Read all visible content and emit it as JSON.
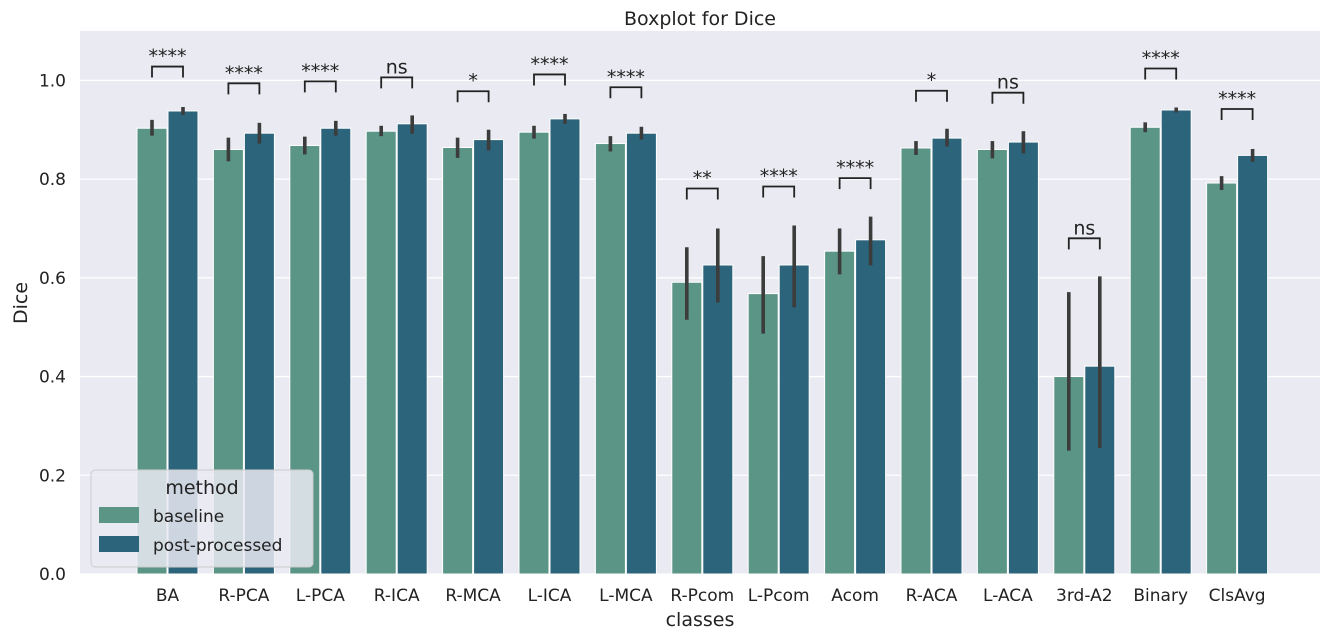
{
  "chart_data": {
    "type": "bar",
    "title": "Boxplot for Dice",
    "xlabel": "classes",
    "ylabel": "Dice",
    "ylim": [
      0,
      1.1
    ],
    "yticks": [
      "0.0",
      "0.2",
      "0.4",
      "0.6",
      "0.8",
      "1.0"
    ],
    "grid": true,
    "legend": {
      "title": "method",
      "placement": "lower-left"
    },
    "categories": [
      "BA",
      "R-PCA",
      "L-PCA",
      "R-ICA",
      "R-MCA",
      "L-ICA",
      "L-MCA",
      "R-Pcom",
      "L-Pcom",
      "Acom",
      "R-ACA",
      "L-ACA",
      "3rd-A2",
      "Binary",
      "ClsAvg"
    ],
    "series": [
      {
        "name": "baseline",
        "color": "#5a9586",
        "values": [
          0.903,
          0.86,
          0.868,
          0.897,
          0.864,
          0.895,
          0.872,
          0.591,
          0.568,
          0.654,
          0.863,
          0.86,
          0.4,
          0.905,
          0.792
        ],
        "ci_low": [
          0.888,
          0.836,
          0.85,
          0.887,
          0.843,
          0.882,
          0.856,
          0.515,
          0.487,
          0.607,
          0.849,
          0.842,
          0.25,
          0.895,
          0.778
        ],
        "ci_high": [
          0.92,
          0.884,
          0.886,
          0.908,
          0.884,
          0.908,
          0.887,
          0.662,
          0.644,
          0.7,
          0.877,
          0.877,
          0.571,
          0.915,
          0.806
        ]
      },
      {
        "name": "post-processed",
        "color": "#2b647b",
        "values": [
          0.938,
          0.893,
          0.903,
          0.912,
          0.88,
          0.922,
          0.893,
          0.626,
          0.626,
          0.677,
          0.883,
          0.875,
          0.421,
          0.94,
          0.848
        ],
        "ci_low": [
          0.93,
          0.872,
          0.888,
          0.892,
          0.858,
          0.912,
          0.88,
          0.55,
          0.54,
          0.625,
          0.866,
          0.852,
          0.255,
          0.935,
          0.835
        ],
        "ci_high": [
          0.946,
          0.914,
          0.918,
          0.929,
          0.9,
          0.932,
          0.906,
          0.7,
          0.706,
          0.724,
          0.902,
          0.897,
          0.603,
          0.945,
          0.861
        ]
      }
    ],
    "annotations": [
      {
        "category": "BA",
        "label": "****",
        "y": 1.028
      },
      {
        "category": "R-PCA",
        "label": "****",
        "y": 0.994
      },
      {
        "category": "L-PCA",
        "label": "****",
        "y": 0.998
      },
      {
        "category": "R-ICA",
        "label": "ns",
        "y": 1.006
      },
      {
        "category": "R-MCA",
        "label": "*",
        "y": 0.978
      },
      {
        "category": "L-ICA",
        "label": "****",
        "y": 1.012
      },
      {
        "category": "L-MCA",
        "label": "****",
        "y": 0.986
      },
      {
        "category": "R-Pcom",
        "label": "**",
        "y": 0.781
      },
      {
        "category": "L-Pcom",
        "label": "****",
        "y": 0.785
      },
      {
        "category": "Acom",
        "label": "****",
        "y": 0.802
      },
      {
        "category": "R-ACA",
        "label": "*",
        "y": 0.979
      },
      {
        "category": "L-ACA",
        "label": "ns",
        "y": 0.975
      },
      {
        "category": "3rd-A2",
        "label": "ns",
        "y": 0.68
      },
      {
        "category": "Binary",
        "label": "****",
        "y": 1.024
      },
      {
        "category": "ClsAvg",
        "label": "****",
        "y": 0.942
      }
    ]
  }
}
